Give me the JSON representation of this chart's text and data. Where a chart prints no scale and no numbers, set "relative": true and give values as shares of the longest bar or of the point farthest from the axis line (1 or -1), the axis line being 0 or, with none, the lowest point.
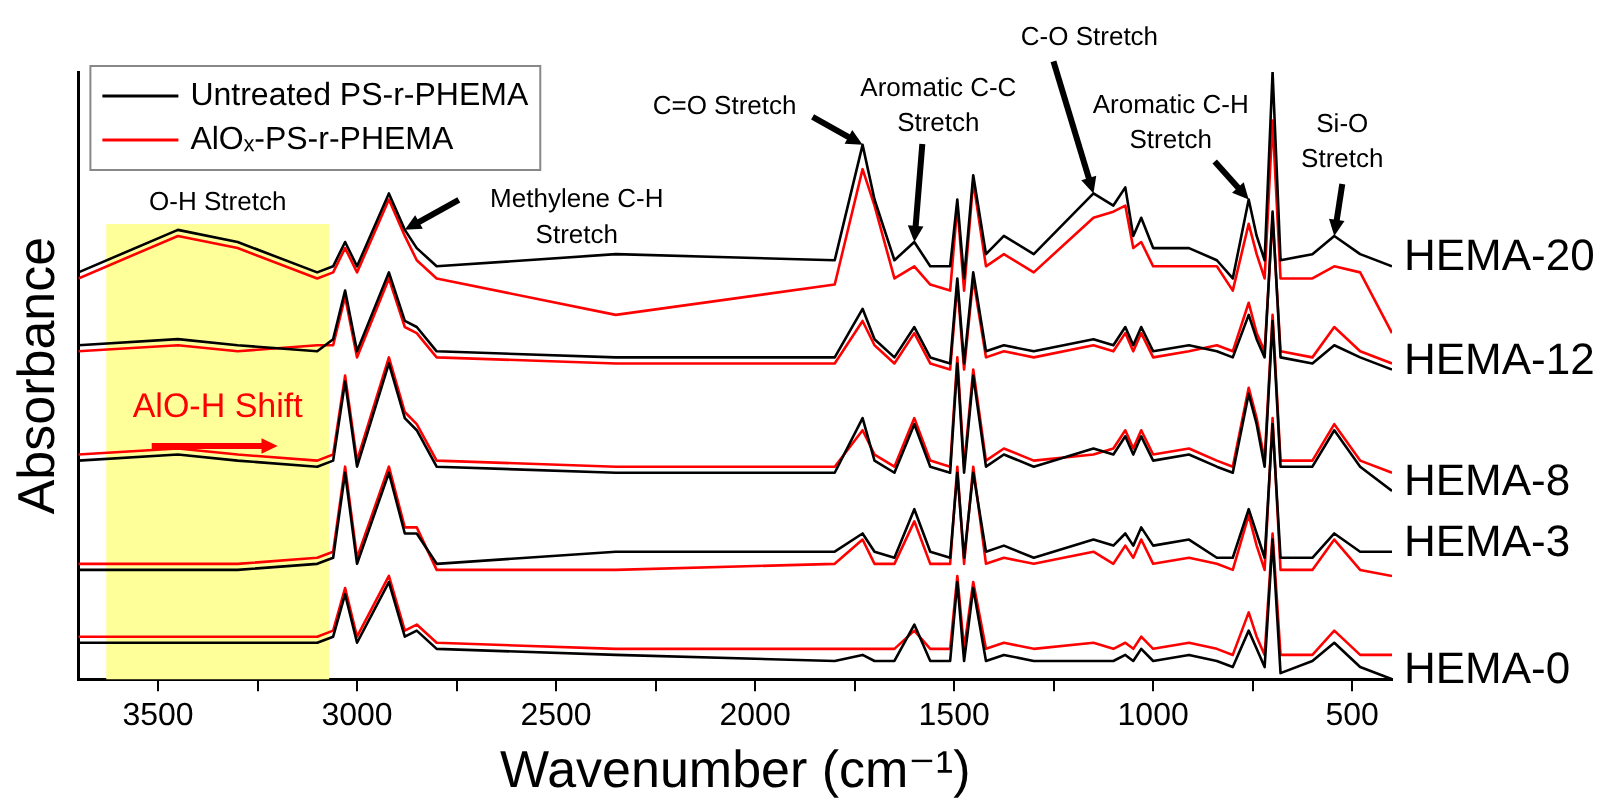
{
  "chart_data": {
    "type": "line",
    "relative": true,
    "xlabel": "Wavenumber (cm⁻¹)",
    "ylabel": "Absorbance",
    "xlim": [
      3700,
      400
    ],
    "xticks": [
      3500,
      {
        "value": 3250,
        "label": null
      },
      3000,
      {
        "value": 2750,
        "label": null
      },
      2500,
      {
        "value": 2250,
        "label": null
      },
      2000,
      {
        "value": 1750,
        "label": null
      },
      1500,
      {
        "value": 1250,
        "label": null
      },
      1000,
      {
        "value": 750,
        "label": null
      },
      500
    ],
    "x": [
      3700,
      3450,
      3300,
      3100,
      3060,
      3030,
      3000,
      2920,
      2880,
      2850,
      2800,
      2350,
      1800,
      1730,
      1700,
      1650,
      1600,
      1560,
      1510,
      1492,
      1475,
      1452,
      1420,
      1375,
      1300,
      1150,
      1100,
      1070,
      1050,
      1030,
      1000,
      910,
      840,
      800,
      760,
      740,
      720,
      700,
      680,
      600,
      545,
      480,
      400
    ],
    "legend": "top left",
    "grid": false,
    "series": [
      {
        "name": "Untreated PS-r-PHEMA",
        "color": "#000000",
        "values": [
          0.67,
          0.74,
          0.72,
          0.67,
          0.68,
          0.72,
          0.68,
          0.8,
          0.74,
          0.71,
          0.68,
          0.7,
          0.69,
          0.88,
          0.79,
          0.69,
          0.72,
          0.68,
          0.68,
          0.79,
          0.66,
          0.83,
          0.7,
          0.73,
          0.7,
          0.8,
          0.78,
          0.81,
          0.73,
          0.76,
          0.71,
          0.71,
          0.69,
          0.66,
          0.79,
          0.73,
          0.69,
          1,
          0.69,
          0.7,
          0.73,
          0.7,
          0.68
        ]
      },
      {
        "name": "AlOₓ-PS-r-PHEMA",
        "color": "#ff0000",
        "values": [
          0.66,
          0.73,
          0.71,
          0.66,
          0.67,
          0.71,
          0.67,
          0.79,
          0.73,
          0.69,
          0.66,
          0.6,
          0.65,
          0.84,
          0.78,
          0.66,
          0.68,
          0.65,
          0.64,
          0.78,
          0.64,
          0.82,
          0.68,
          0.7,
          0.67,
          0.76,
          0.77,
          0.78,
          0.71,
          0.72,
          0.68,
          0.68,
          0.68,
          0.64,
          0.75,
          0.7,
          0.66,
          0.92,
          0.66,
          0.66,
          0.68,
          0.67,
          0.57
        ]
      },
      {
        "color": "#000000",
        "values": [
          0.55,
          0.56,
          0.55,
          0.54,
          0.56,
          0.64,
          0.54,
          0.67,
          0.59,
          0.58,
          0.54,
          0.53,
          0.53,
          0.61,
          0.56,
          0.53,
          0.58,
          0.53,
          0.52,
          0.66,
          0.52,
          0.67,
          0.54,
          0.55,
          0.54,
          0.56,
          0.55,
          0.58,
          0.55,
          0.58,
          0.54,
          0.55,
          0.54,
          0.53,
          0.6,
          0.56,
          0.53,
          0.77,
          0.53,
          0.52,
          0.55,
          0.53,
          0.51
        ]
      },
      {
        "color": "#ff0000",
        "values": [
          0.54,
          0.55,
          0.54,
          0.55,
          0.55,
          0.63,
          0.53,
          0.66,
          0.58,
          0.57,
          0.53,
          0.52,
          0.52,
          0.59,
          0.55,
          0.52,
          0.57,
          0.52,
          0.51,
          0.65,
          0.51,
          0.66,
          0.53,
          0.54,
          0.53,
          0.55,
          0.54,
          0.57,
          0.54,
          0.57,
          0.53,
          0.54,
          0.55,
          0.54,
          0.62,
          0.57,
          0.54,
          0.76,
          0.54,
          0.53,
          0.58,
          0.54,
          0.52
        ]
      },
      {
        "color": "#000000",
        "values": [
          0.36,
          0.37,
          0.36,
          0.35,
          0.36,
          0.49,
          0.35,
          0.52,
          0.43,
          0.41,
          0.35,
          0.34,
          0.34,
          0.43,
          0.36,
          0.34,
          0.42,
          0.35,
          0.34,
          0.52,
          0.34,
          0.5,
          0.35,
          0.37,
          0.35,
          0.38,
          0.37,
          0.4,
          0.37,
          0.4,
          0.36,
          0.37,
          0.35,
          0.34,
          0.47,
          0.42,
          0.35,
          0.59,
          0.35,
          0.35,
          0.41,
          0.35,
          0.31
        ]
      },
      {
        "color": "#ff0000",
        "values": [
          0.37,
          0.38,
          0.37,
          0.36,
          0.37,
          0.5,
          0.36,
          0.53,
          0.44,
          0.42,
          0.36,
          0.35,
          0.35,
          0.41,
          0.37,
          0.35,
          0.43,
          0.36,
          0.35,
          0.53,
          0.35,
          0.51,
          0.36,
          0.38,
          0.36,
          0.37,
          0.38,
          0.41,
          0.38,
          0.41,
          0.37,
          0.38,
          0.36,
          0.35,
          0.48,
          0.43,
          0.36,
          0.6,
          0.36,
          0.36,
          0.42,
          0.36,
          0.34
        ]
      },
      {
        "color": "#000000",
        "values": [
          0.18,
          0.18,
          0.18,
          0.19,
          0.2,
          0.34,
          0.19,
          0.34,
          0.24,
          0.24,
          0.19,
          0.21,
          0.21,
          0.24,
          0.21,
          0.2,
          0.28,
          0.21,
          0.2,
          0.34,
          0.2,
          0.34,
          0.21,
          0.22,
          0.2,
          0.23,
          0.22,
          0.24,
          0.22,
          0.25,
          0.22,
          0.23,
          0.2,
          0.2,
          0.28,
          0.24,
          0.2,
          0.42,
          0.2,
          0.2,
          0.24,
          0.21,
          0.21
        ]
      },
      {
        "color": "#ff0000",
        "values": [
          0.19,
          0.19,
          0.19,
          0.2,
          0.21,
          0.35,
          0.2,
          0.35,
          0.25,
          0.25,
          0.18,
          0.18,
          0.19,
          0.23,
          0.19,
          0.19,
          0.26,
          0.19,
          0.19,
          0.35,
          0.19,
          0.35,
          0.19,
          0.2,
          0.19,
          0.21,
          0.19,
          0.22,
          0.2,
          0.23,
          0.19,
          0.2,
          0.19,
          0.18,
          0.27,
          0.22,
          0.18,
          0.43,
          0.18,
          0.18,
          0.23,
          0.18,
          0.17
        ]
      },
      {
        "color": "#000000",
        "values": [
          0.06,
          0.06,
          0.06,
          0.06,
          0.07,
          0.14,
          0.06,
          0.16,
          0.07,
          0.08,
          0.05,
          0.04,
          0.03,
          0.04,
          0.03,
          0.03,
          0.09,
          0.03,
          0.03,
          0.16,
          0.03,
          0.15,
          0.03,
          0.04,
          0.03,
          0.03,
          0.03,
          0.04,
          0.03,
          0.05,
          0.03,
          0.04,
          0.03,
          0.02,
          0.08,
          0.05,
          0.02,
          0.23,
          0.01,
          0.03,
          0.06,
          0.02,
          0
        ]
      },
      {
        "color": "#ff0000",
        "values": [
          0.07,
          0.07,
          0.07,
          0.07,
          0.08,
          0.15,
          0.07,
          0.17,
          0.08,
          0.09,
          0.06,
          0.05,
          0.05,
          0.05,
          0.05,
          0.05,
          0.08,
          0.05,
          0.05,
          0.17,
          0.05,
          0.16,
          0.05,
          0.06,
          0.05,
          0.06,
          0.05,
          0.06,
          0.05,
          0.07,
          0.05,
          0.06,
          0.05,
          0.04,
          0.11,
          0.07,
          0.04,
          0.24,
          0.04,
          0.04,
          0.08,
          0.04,
          0.04
        ]
      }
    ],
    "bands": [
      {
        "axis": "x",
        "from": 3630,
        "to": 3070,
        "label": "O-H Stretch",
        "color": "#ffff99"
      }
    ],
    "annotations": [
      {
        "text": "Methylene C-H Stretch",
        "x": 2880,
        "y": 0.74
      },
      {
        "text": "C=O Stretch",
        "x": 1730,
        "y": 0.88
      },
      {
        "text": "Aromatic C-C Stretch",
        "x": 1600,
        "y": 0.72
      },
      {
        "text": "C-O Stretch",
        "x": 1150,
        "y": 0.8
      },
      {
        "text": "Aromatic C-H Stretch",
        "x": 760,
        "y": 0.79
      },
      {
        "text": "Si-O Stretch",
        "x": 545,
        "y": 0.73
      },
      "AlO-H Shift",
      "HEMA-20",
      "HEMA-12",
      "HEMA-8",
      "HEMA-3",
      "HEMA-0"
    ]
  }
}
